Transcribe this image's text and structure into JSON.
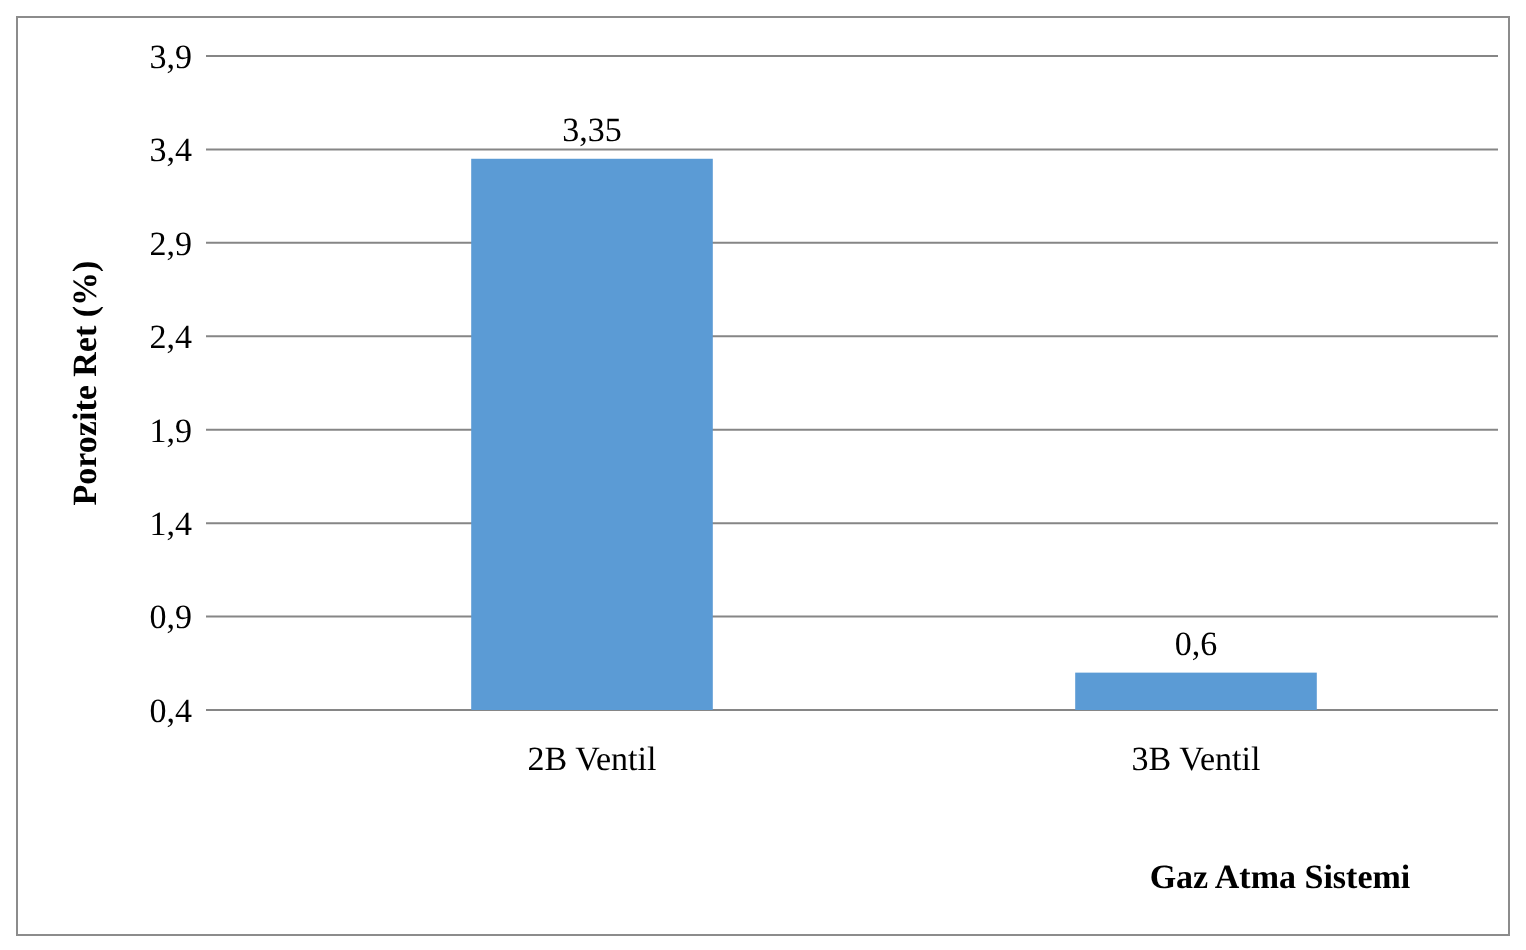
{
  "chart_data": {
    "type": "bar",
    "xlabel": "Gaz Atma Sistemi",
    "ylabel": "Porozite Ret (%)",
    "categories": [
      "2B Ventil",
      "3B Ventil"
    ],
    "values": [
      3.35,
      0.6
    ],
    "value_labels": [
      "3,35",
      "0,6"
    ],
    "color": "#5b9bd5",
    "ylim": [
      0.4,
      3.9
    ],
    "yticks": [
      {
        "value": 0.4,
        "label": "0,4"
      },
      {
        "value": 0.9,
        "label": "0,9"
      },
      {
        "value": 1.4,
        "label": "1,4"
      },
      {
        "value": 1.9,
        "label": "1,9"
      },
      {
        "value": 2.4,
        "label": "2,4"
      },
      {
        "value": 2.9,
        "label": "2,9"
      },
      {
        "value": 3.4,
        "label": "3,4"
      },
      {
        "value": 3.9,
        "label": "3,9"
      }
    ],
    "grid": "y"
  }
}
